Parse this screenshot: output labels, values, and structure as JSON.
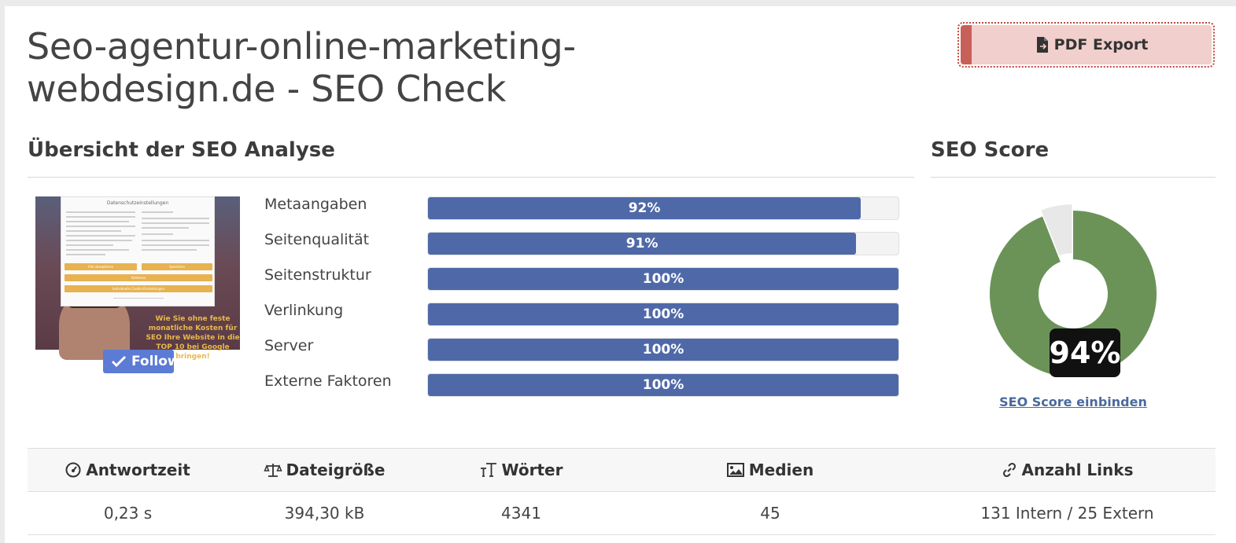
{
  "title": "Seo-agentur-online-marketing-webdesign.de - SEO Check",
  "pdf_button": {
    "label": "PDF Export",
    "icon": "file-export-icon"
  },
  "overview": {
    "heading": "Übersicht der SEO Analyse"
  },
  "screenshot": {
    "follow_label": "Follow",
    "dialog_title": "Datenschutzeinstellungen",
    "overlay_text": "Wie Sie ohne feste monatliche Kosten für SEO Ihre Website in die TOP 10 bei Google bringen!",
    "accept_label": "Alle akzeptieren",
    "save_label": "Speichern",
    "reject_label": "Ablehnen",
    "individual_label": "Individuelle Cookie Einstellungen"
  },
  "metrics": [
    {
      "label": "Metaangaben",
      "value": 92,
      "text": "92%"
    },
    {
      "label": "Seitenqualität",
      "value": 91,
      "text": "91%"
    },
    {
      "label": "Seitenstruktur",
      "value": 100,
      "text": "100%"
    },
    {
      "label": "Verlinkung",
      "value": 100,
      "text": "100%"
    },
    {
      "label": "Server",
      "value": 100,
      "text": "100%"
    },
    {
      "label": "Externe Faktoren",
      "value": 100,
      "text": "100%"
    }
  ],
  "score": {
    "heading": "SEO Score",
    "value": 94,
    "text": "94%",
    "embed_link": "SEO Score einbinden",
    "color_good": "#6b9358",
    "color_rest": "#e8e8e8"
  },
  "stats": {
    "headers": [
      {
        "label": "Antwortzeit",
        "icon": "gauge-icon"
      },
      {
        "label": "Dateigröße",
        "icon": "scale-icon"
      },
      {
        "label": "Wörter",
        "icon": "text-height-icon"
      },
      {
        "label": "Medien",
        "icon": "image-icon"
      },
      {
        "label": "Anzahl Links",
        "icon": "link-icon"
      }
    ],
    "values": [
      "0,23 s",
      "394,30 kB",
      "4341",
      "45",
      "131 Intern / 25 Extern"
    ]
  },
  "colors": {
    "bar": "#4f69a8",
    "pdf_bg": "#f0cfcc",
    "pdf_accent": "#c8605a"
  }
}
